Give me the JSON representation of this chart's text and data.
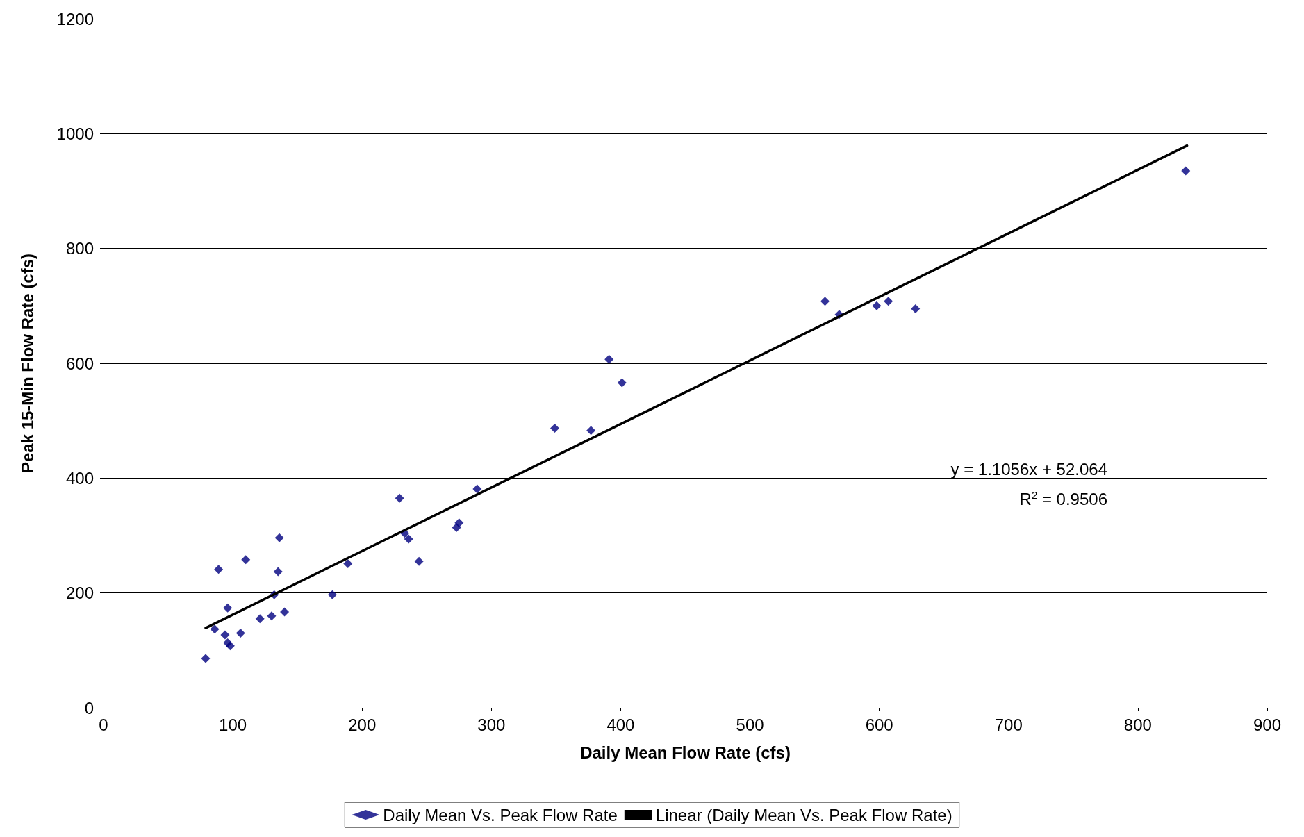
{
  "chart_data": {
    "type": "scatter",
    "xlabel": "Daily Mean Flow Rate (cfs)",
    "ylabel": "Peak 15-Min Flow Rate (cfs)",
    "xlim": [
      0,
      900
    ],
    "xticks": [
      0,
      100,
      200,
      300,
      400,
      500,
      600,
      700,
      800,
      900
    ],
    "ylim": [
      0,
      1200
    ],
    "yticks": [
      0,
      200,
      400,
      600,
      800,
      1000,
      1200
    ],
    "grid": "y",
    "legend": "bottom",
    "marker": "diamond",
    "annotations": [
      "y = 1.1056x + 52.064",
      "R$^{2}$ = 0.9506"
    ],
    "series": [
      {
        "name": "Daily Mean Vs. Peak Flow Rate",
        "color": "#000080",
        "x": [
          79,
          86,
          89,
          96,
          94,
          96,
          98,
          106,
          110,
          121,
          130,
          132,
          135,
          136,
          140,
          177,
          189,
          229,
          233,
          236,
          244,
          273,
          275,
          289,
          349,
          377,
          391,
          401,
          558,
          569,
          598,
          607,
          628,
          837
        ],
        "values": [
          86,
          137,
          241,
          174,
          127,
          113,
          108,
          130,
          258,
          155,
          160,
          197,
          237,
          296,
          167,
          197,
          251,
          365,
          304,
          294,
          255,
          314,
          322,
          381,
          487,
          483,
          607,
          566,
          708,
          685,
          700,
          708,
          695,
          935
        ]
      },
      {
        "name": "Linear (Daily Mean Vs. Peak Flow Rate)",
        "type": "line",
        "color": "#000000",
        "line_style": "solid",
        "marker": "none",
        "x": [
          79,
          838
        ],
        "values": [
          139,
          979
        ]
      }
    ]
  }
}
